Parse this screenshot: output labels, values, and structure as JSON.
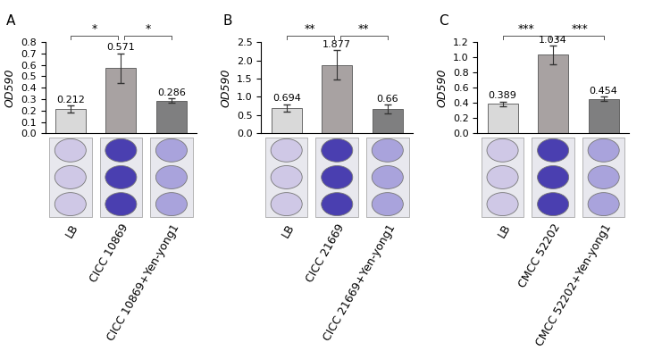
{
  "chart_data": [
    {
      "type": "bar",
      "panel": "A",
      "y_label": "OD590",
      "categories": [
        "LB",
        "CICC 10869",
        "CICC 10869+Yen-yong1"
      ],
      "values": [
        0.212,
        0.571,
        0.286
      ],
      "errors": [
        0.03,
        0.13,
        0.02
      ],
      "colors": [
        "#d9d9d9",
        "#a8a2a2",
        "#7f7f80"
      ],
      "data_labels": true,
      "ylim": [
        0,
        0.8
      ],
      "yticks": [
        {
          "value": 0,
          "label": "0.0"
        },
        0.1,
        0.2,
        0.3,
        0.4,
        0.5,
        0.6,
        0.7,
        0.8
      ],
      "significance": [
        {
          "between": [
            "LB",
            "CICC 10869"
          ],
          "label": "*"
        },
        {
          "between": [
            "CICC 10869",
            "CICC 10869+Yen-yong1"
          ],
          "label": "*"
        }
      ]
    },
    {
      "type": "bar",
      "panel": "B",
      "y_label": "OD590",
      "categories": [
        "LB",
        "CICC 21669",
        "CICC 21669+Yen-yong1"
      ],
      "values": [
        0.694,
        1.877,
        0.66
      ],
      "errors": [
        0.1,
        0.4,
        0.12
      ],
      "colors": [
        "#d9d9d9",
        "#a8a2a2",
        "#7f7f80"
      ],
      "data_labels": true,
      "ylim": [
        0,
        2.5
      ],
      "yticks": [
        {
          "value": 0,
          "label": "0.0"
        },
        0.5,
        {
          "value": 1,
          "label": "1.0"
        },
        1.5,
        {
          "value": 2,
          "label": "2.0"
        },
        2.5
      ],
      "significance": [
        {
          "between": [
            "LB",
            "CICC 21669"
          ],
          "label": "**"
        },
        {
          "between": [
            "CICC 21669",
            "CICC 21669+Yen-yong1"
          ],
          "label": "**"
        }
      ]
    },
    {
      "type": "bar",
      "panel": "C",
      "y_label": "OD590",
      "categories": [
        "LB",
        "CMCC 52202",
        "CMCC 52202+Yen-yong1"
      ],
      "values": [
        0.389,
        1.034,
        0.454
      ],
      "errors": [
        0.03,
        0.12,
        0.03
      ],
      "colors": [
        "#d9d9d9",
        "#a8a2a2",
        "#7f7f80"
      ],
      "data_labels": true,
      "ylim": [
        0,
        1.2
      ],
      "yticks": [
        {
          "value": 0,
          "label": "0.0"
        },
        0.2,
        0.4,
        0.6,
        0.8,
        {
          "value": 1,
          "label": "1.0"
        },
        1.2
      ],
      "significance": [
        {
          "between": [
            "LB",
            "CMCC 52202"
          ],
          "label": "***"
        },
        {
          "between": [
            "CMCC 52202",
            "CMCC 52202+Yen-yong1"
          ],
          "label": "***"
        }
      ]
    }
  ]
}
